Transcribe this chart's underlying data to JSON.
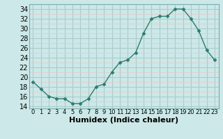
{
  "x": [
    0,
    1,
    2,
    3,
    4,
    5,
    6,
    7,
    8,
    9,
    10,
    11,
    12,
    13,
    14,
    15,
    16,
    17,
    18,
    19,
    20,
    21,
    22,
    23
  ],
  "y": [
    19,
    17.5,
    16,
    15.5,
    15.5,
    14.5,
    14.5,
    15.5,
    18,
    18.5,
    21,
    23,
    23.5,
    25,
    29,
    32,
    32.5,
    32.5,
    34,
    34,
    32,
    29.5,
    25.5,
    23.5
  ],
  "line_color": "#2a7d6e",
  "marker": "D",
  "marker_size": 2.5,
  "bg_color": "#cce8e8",
  "grid_color_major": "#aacccc",
  "grid_color_minor": "#e8c8c8",
  "xlabel": "Humidex (Indice chaleur)",
  "xlabel_fontsize": 8,
  "xlim": [
    -0.5,
    23.5
  ],
  "ylim": [
    13.5,
    35
  ],
  "yticks": [
    14,
    16,
    18,
    20,
    22,
    24,
    26,
    28,
    30,
    32,
    34
  ],
  "xtick_fontsize": 6,
  "ytick_fontsize": 7,
  "tick_color": "#000000"
}
